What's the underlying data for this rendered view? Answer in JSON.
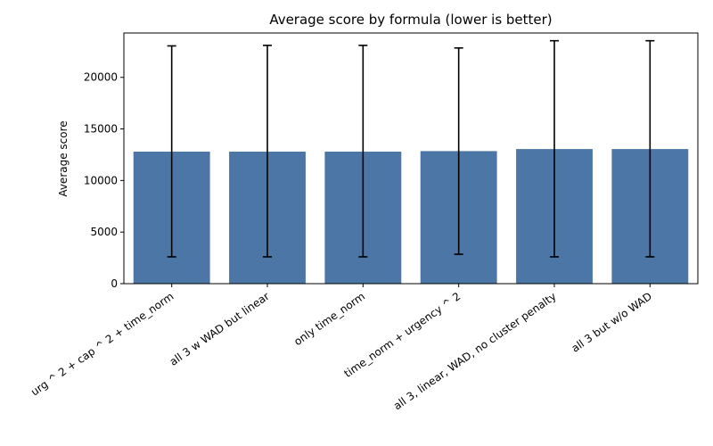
{
  "chart_data": {
    "type": "bar",
    "title": "Average score by formula (lower is better)",
    "xlabel": "",
    "ylabel": "Average score",
    "categories": [
      "urg ^ 2 + cap ^ 2 + time_norm",
      "all 3 w WAD but linear",
      "only time_norm",
      "time_norm + urgency ^ 2",
      "all 3, linear, WAD, no cluster penalty",
      "all 3 but w/o WAD"
    ],
    "values": [
      12800,
      12800,
      12800,
      12850,
      13050,
      13050
    ],
    "error_low": [
      2600,
      2600,
      2600,
      2850,
      2600,
      2600
    ],
    "error_high": [
      23050,
      23100,
      23100,
      22850,
      23550,
      23550
    ],
    "ylim": [
      0,
      24300
    ],
    "yticks": [
      0,
      5000,
      10000,
      15000,
      20000
    ],
    "ytick_labels": [
      "0",
      "5000",
      "10000",
      "15000",
      "20000"
    ],
    "bar_color": "#4c76a5",
    "grid": false,
    "legend": "none"
  }
}
